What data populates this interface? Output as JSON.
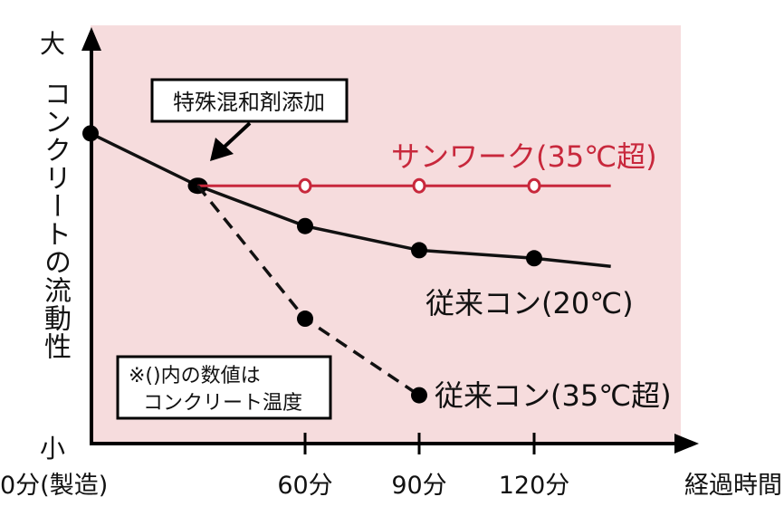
{
  "chart_data": {
    "type": "line",
    "ylabel": "コンクリートの流動性",
    "y_top_label": "大",
    "y_bottom_label": "小",
    "xlabel": "経過時間",
    "x_tick_labels": [
      "0分(製造)",
      "60分",
      "90分",
      "120分"
    ],
    "x_ticks": [
      0,
      60,
      90,
      120
    ],
    "xlim": [
      0,
      140
    ],
    "ylim": [
      0,
      100
    ],
    "grid": false,
    "annotation": "特殊混和剤添加",
    "note_lines": [
      "※()内の数値は",
      "コンクリート温度"
    ],
    "series": [
      {
        "name": "従来コン(20℃)",
        "color": "#111111",
        "style": "solid",
        "marker": "filled",
        "points": [
          [
            0,
            77
          ],
          [
            30,
            64
          ],
          [
            60,
            54
          ],
          [
            90,
            48
          ],
          [
            120,
            46
          ],
          [
            140,
            44
          ]
        ],
        "markers_at": [
          0,
          30,
          60,
          90,
          120
        ]
      },
      {
        "name": "サンワーク(35℃超)",
        "color": "#c8283c",
        "style": "solid",
        "marker": "open",
        "points": [
          [
            30,
            64
          ],
          [
            60,
            64
          ],
          [
            90,
            64
          ],
          [
            120,
            64
          ],
          [
            140,
            64
          ]
        ],
        "markers_at": [
          60,
          90,
          120
        ]
      },
      {
        "name": "従来コン(35℃超)",
        "color": "#111111",
        "style": "dashed",
        "marker": "filled",
        "points": [
          [
            30,
            64
          ],
          [
            60,
            31
          ],
          [
            90,
            12
          ]
        ],
        "markers_at": [
          60,
          90
        ]
      }
    ]
  },
  "colors": {
    "plot_background": "#f6dcdd",
    "accent": "#c8283c"
  }
}
